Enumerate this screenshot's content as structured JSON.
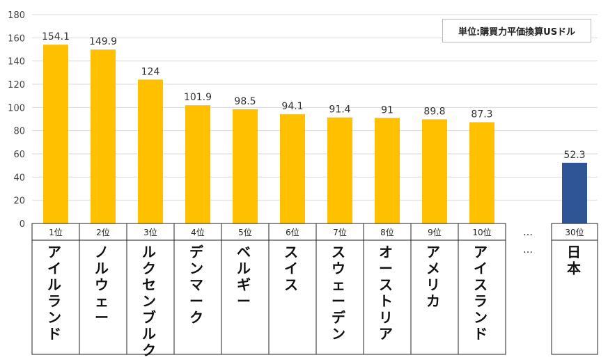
{
  "unit_label": "単位:購買力平価換算USドル",
  "chart_data": {
    "type": "bar",
    "y_ticks": [
      "0",
      "20",
      "40",
      "60",
      "80",
      "100",
      "120",
      "140",
      "160",
      "180"
    ],
    "ylim": [
      0,
      180
    ],
    "grid": true,
    "legend": "none",
    "ellipsis": "…",
    "bars": [
      {
        "rank": "1位",
        "name": "アイルランド",
        "value": 154.1,
        "label": "154.1",
        "highlight": false
      },
      {
        "rank": "2位",
        "name": "ノルウェー",
        "value": 149.9,
        "label": "149.9",
        "highlight": false
      },
      {
        "rank": "3位",
        "name": "ルクセンブルク",
        "value": 124,
        "label": "124",
        "highlight": false
      },
      {
        "rank": "4位",
        "name": "デンマーク",
        "value": 101.9,
        "label": "101.9",
        "highlight": false
      },
      {
        "rank": "5位",
        "name": "ベルギー",
        "value": 98.5,
        "label": "98.5",
        "highlight": false
      },
      {
        "rank": "6位",
        "name": "スイス",
        "value": 94.1,
        "label": "94.1",
        "highlight": false
      },
      {
        "rank": "7位",
        "name": "スウェーデン",
        "value": 91.4,
        "label": "91.4",
        "highlight": false
      },
      {
        "rank": "8位",
        "name": "オーストリア",
        "value": 91,
        "label": "91",
        "highlight": false
      },
      {
        "rank": "9位",
        "name": "アメリカ",
        "value": 89.8,
        "label": "89.8",
        "highlight": false
      },
      {
        "rank": "10位",
        "name": "アイスランド",
        "value": 87.3,
        "label": "87.3",
        "highlight": false
      },
      {
        "rank": "30位",
        "name": "日本",
        "value": 52.3,
        "label": "52.3",
        "highlight": true
      }
    ],
    "colors": {
      "bar": "#FFC000",
      "highlight": "#2F5597",
      "grid": "#D9D9D9",
      "axis": "#595959"
    }
  }
}
